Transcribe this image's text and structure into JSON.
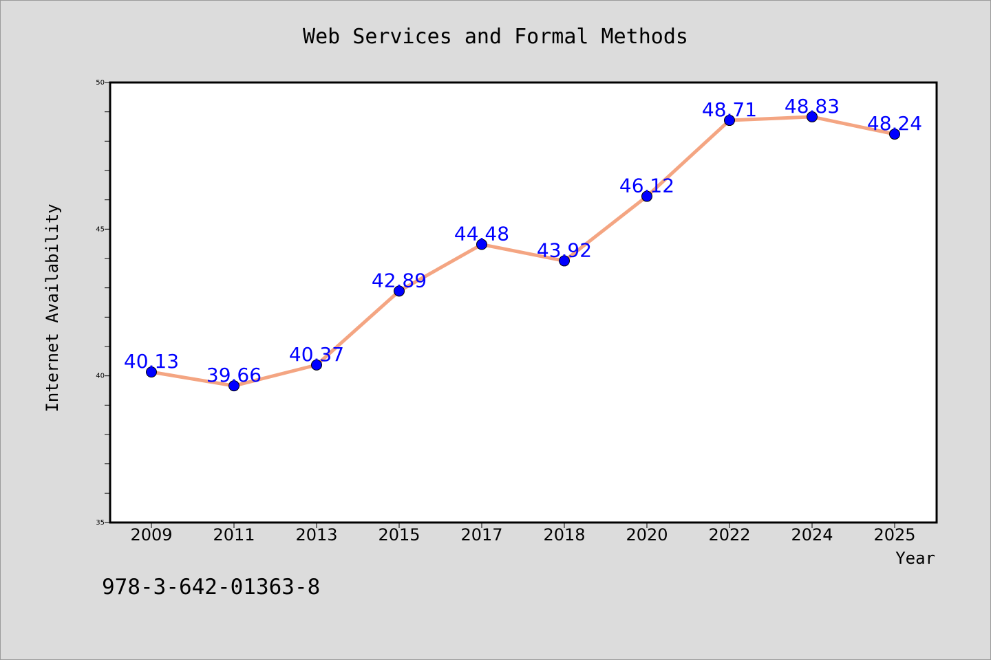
{
  "chart_data": {
    "type": "line",
    "title": "Web Services and Formal Methods",
    "xlabel": "Year",
    "ylabel": "Internet Availability",
    "categories": [
      "2009",
      "2011",
      "2013",
      "2015",
      "2017",
      "2018",
      "2020",
      "2022",
      "2024",
      "2025"
    ],
    "series": [
      {
        "values": [
          40.13,
          39.66,
          40.37,
          42.89,
          44.48,
          43.92,
          46.12,
          48.71,
          48.83,
          48.24
        ],
        "data_labels": [
          "40.13",
          "39.66",
          "40.37",
          "42.89",
          "44.48",
          "43.92",
          "46.12",
          "48.71",
          "48.83",
          "48.24"
        ],
        "line_color": "#f4a582",
        "marker_color": "#0000ff",
        "label_color": "#0000ff"
      }
    ],
    "ylim": [
      35,
      50
    ],
    "yticks": [
      "35",
      "40",
      "45",
      "50"
    ],
    "grid": false,
    "legend": "none"
  },
  "annotation": "978-3-642-01363-8",
  "colors": {
    "background": "#dcdcdc",
    "plot_background": "#ffffff",
    "axis": "#000000"
  }
}
